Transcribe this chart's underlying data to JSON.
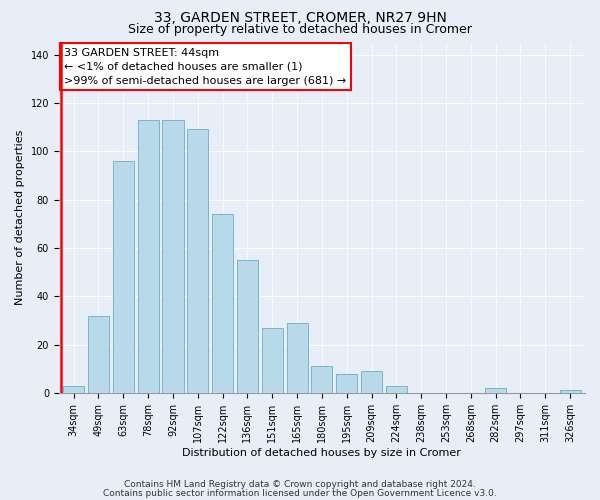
{
  "title": "33, GARDEN STREET, CROMER, NR27 9HN",
  "subtitle": "Size of property relative to detached houses in Cromer",
  "xlabel": "Distribution of detached houses by size in Cromer",
  "ylabel": "Number of detached properties",
  "bins": [
    "34sqm",
    "49sqm",
    "63sqm",
    "78sqm",
    "92sqm",
    "107sqm",
    "122sqm",
    "136sqm",
    "151sqm",
    "165sqm",
    "180sqm",
    "195sqm",
    "209sqm",
    "224sqm",
    "238sqm",
    "253sqm",
    "268sqm",
    "282sqm",
    "297sqm",
    "311sqm",
    "326sqm"
  ],
  "values": [
    3,
    32,
    96,
    113,
    113,
    109,
    74,
    55,
    27,
    29,
    11,
    8,
    9,
    3,
    0,
    0,
    0,
    2,
    0,
    0,
    1
  ],
  "bar_color": "#b8d9ea",
  "bar_edge_color": "#7ab4ce",
  "ylim": [
    0,
    145
  ],
  "yticks": [
    0,
    20,
    40,
    60,
    80,
    100,
    120,
    140
  ],
  "annotation_line1": "33 GARDEN STREET: 44sqm",
  "annotation_line2": "← <1% of detached houses are smaller (1)",
  "annotation_line3": ">99% of semi-detached houses are larger (681) →",
  "footer_line1": "Contains HM Land Registry data © Crown copyright and database right 2024.",
  "footer_line2": "Contains public sector information licensed under the Open Government Licence v3.0.",
  "background_color": "#e8eef8",
  "title_fontsize": 10,
  "subtitle_fontsize": 9,
  "annotation_fontsize": 8,
  "footer_fontsize": 6.5,
  "axis_label_fontsize": 8,
  "tick_fontsize": 7
}
